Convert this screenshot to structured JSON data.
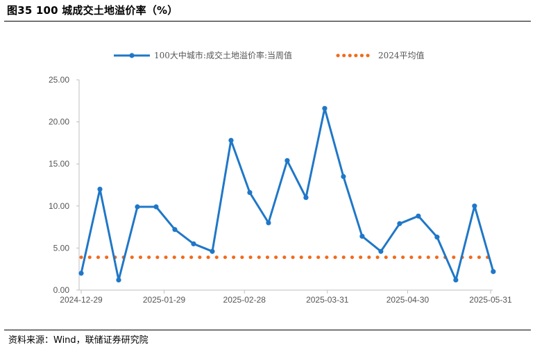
{
  "header": {
    "title": "图35 100 城成交土地溢价率（%）"
  },
  "footer": {
    "source": "资料来源：Wind，联储证券研究院"
  },
  "colors": {
    "series_line": "#1f77c8",
    "average_line": "#f26a1b",
    "axis": "#bfbfbf"
  },
  "chart_data": {
    "type": "line",
    "ylim": [
      0,
      25
    ],
    "y_ticks": [
      "0.00",
      "5.00",
      "10.00",
      "15.00",
      "20.00",
      "25.00"
    ],
    "x_tick_labels": [
      "2024-12-29",
      "2025-01-29",
      "2025-02-28",
      "2025-03-31",
      "2025-04-30",
      "2025-05-31"
    ],
    "x_tick_dates": [
      "2024-12-29",
      "2025-01-29",
      "2025-02-28",
      "2025-03-31",
      "2025-04-30",
      "2025-05-31"
    ],
    "legend_position": "top",
    "series": [
      {
        "name": "100大中城市:成交土地溢价率:当周值",
        "style": "line-with-markers",
        "x": [
          "2024-12-29",
          "2025-01-05",
          "2025-01-12",
          "2025-01-19",
          "2025-01-26",
          "2025-02-02",
          "2025-02-09",
          "2025-02-16",
          "2025-02-23",
          "2025-03-02",
          "2025-03-09",
          "2025-03-16",
          "2025-03-23",
          "2025-03-30",
          "2025-04-06",
          "2025-04-13",
          "2025-04-20",
          "2025-04-27",
          "2025-05-04",
          "2025-05-11",
          "2025-05-18",
          "2025-05-25",
          "2025-06-01"
        ],
        "values": [
          2.0,
          12.0,
          1.2,
          9.9,
          9.9,
          7.2,
          5.5,
          4.6,
          17.8,
          11.6,
          8.0,
          15.4,
          11.0,
          21.6,
          13.5,
          6.4,
          4.6,
          7.9,
          8.8,
          6.3,
          1.2,
          10.0,
          2.2
        ]
      },
      {
        "name": "2024平均值",
        "style": "dotted",
        "value": 3.9
      }
    ]
  }
}
